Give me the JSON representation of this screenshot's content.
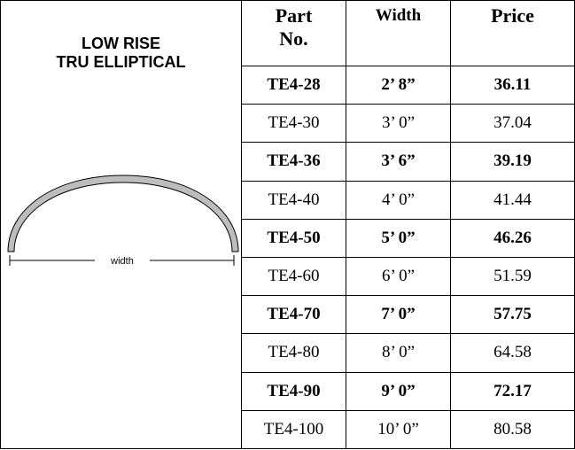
{
  "left": {
    "title": [
      "LOW RISE",
      "TRU ELLIPTICAL"
    ],
    "diagram_label": "width"
  },
  "table": {
    "headers": [
      [
        "Part",
        "No."
      ],
      [
        "Width"
      ],
      [
        "Price"
      ]
    ],
    "rows": [
      {
        "cells": [
          "TE4-28",
          "2’ 8”",
          "36.11"
        ],
        "bold": true
      },
      {
        "cells": [
          "TE4-30",
          "3’ 0”",
          "37.04"
        ],
        "bold": false
      },
      {
        "cells": [
          "TE4-36",
          "3’ 6”",
          "39.19"
        ],
        "bold": true
      },
      {
        "cells": [
          "TE4-40",
          "4’ 0”",
          "41.44"
        ],
        "bold": false
      },
      {
        "cells": [
          "TE4-50",
          "5’ 0”",
          "46.26"
        ],
        "bold": true
      },
      {
        "cells": [
          "TE4-60",
          "6’ 0”",
          "51.59"
        ],
        "bold": false
      },
      {
        "cells": [
          "TE4-70",
          "7’ 0”",
          "57.75"
        ],
        "bold": true
      },
      {
        "cells": [
          "TE4-80",
          "8’ 0”",
          "64.58"
        ],
        "bold": false
      },
      {
        "cells": [
          "TE4-90",
          "9’ 0”",
          "72.17"
        ],
        "bold": true
      },
      {
        "cells": [
          "TE4-100",
          "10’ 0”",
          "80.58"
        ],
        "bold": false
      }
    ]
  }
}
